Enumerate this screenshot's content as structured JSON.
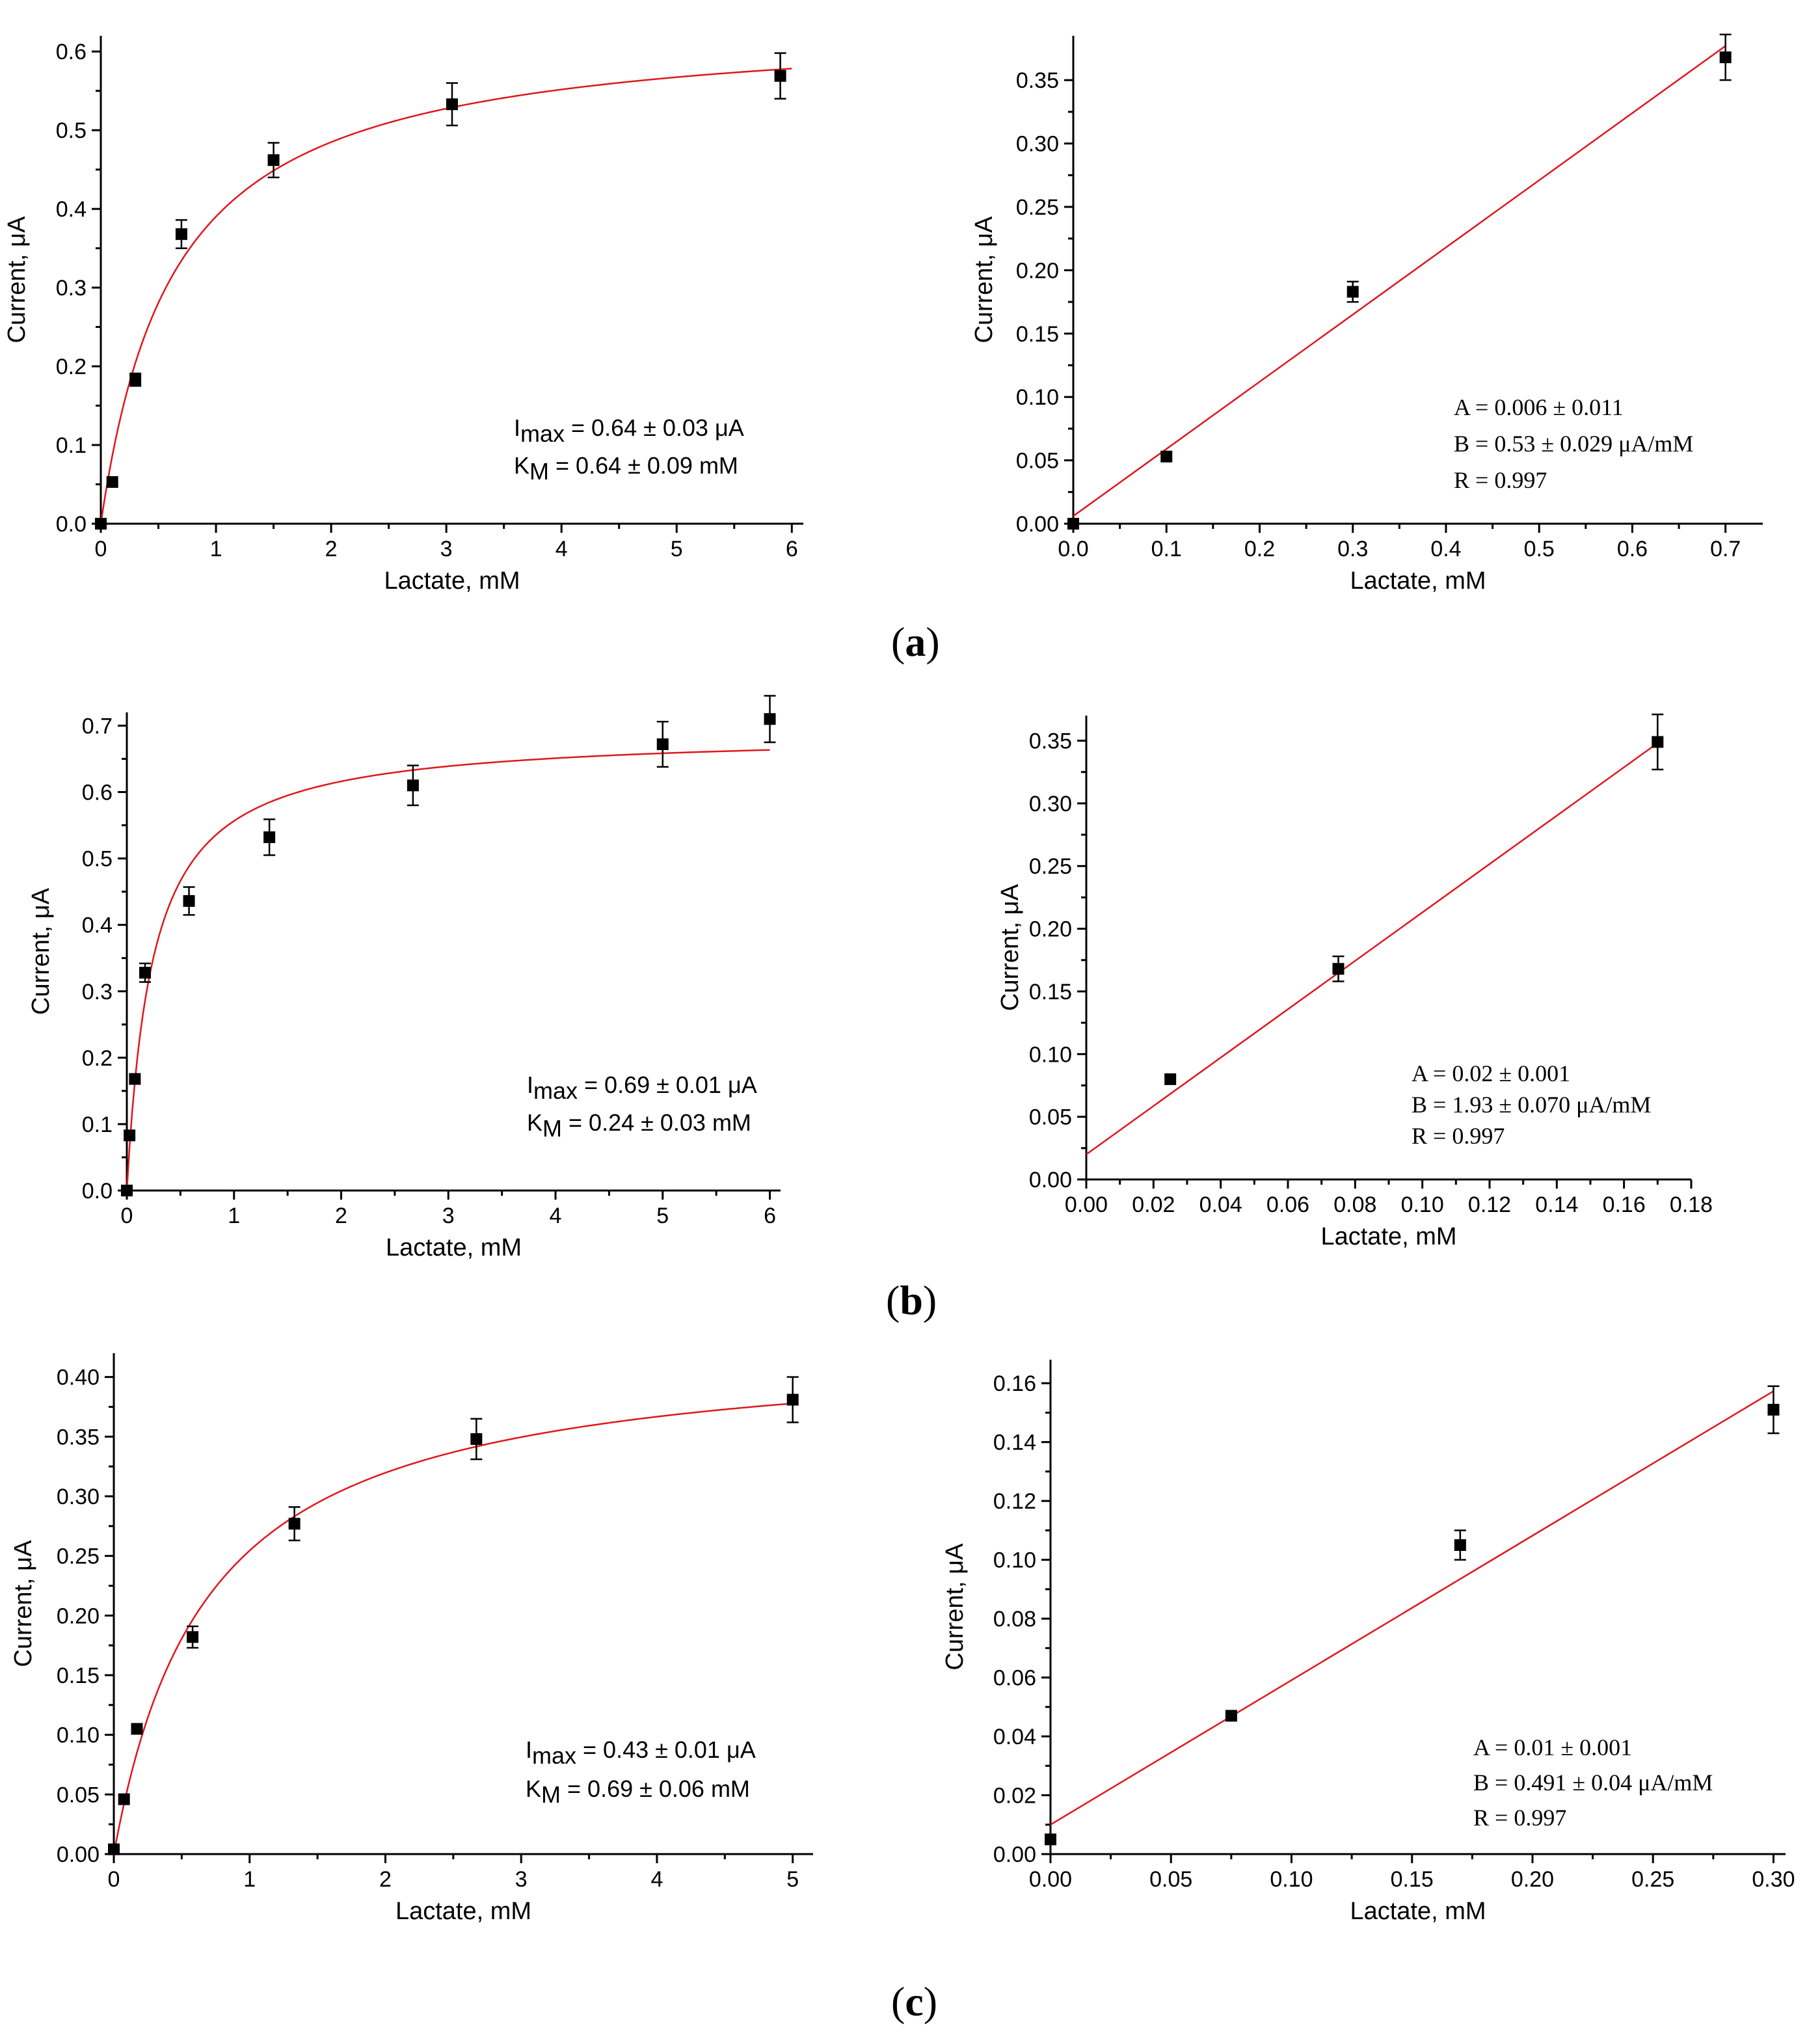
{
  "panel_labels": {
    "a": {
      "open": "(",
      "letter": "a",
      "close": ")"
    },
    "b": {
      "open": "(",
      "letter": "b",
      "close": ")"
    },
    "c": {
      "open": "(",
      "letter": "c",
      "close": ")"
    }
  },
  "chart_data": [
    {
      "id": "a-left",
      "type": "scatter",
      "fit": "michaelis-menten",
      "xlabel": "Lactate, mM",
      "ylabel": "Current, μA",
      "xlim": [
        0,
        6.1
      ],
      "ylim": [
        0,
        0.62
      ],
      "xticks": [
        0,
        1,
        2,
        3,
        4,
        5,
        6
      ],
      "xtick_labels": [
        "0",
        "1",
        "2",
        "3",
        "4",
        "5",
        "6"
      ],
      "yticks": [
        0,
        0.1,
        0.2,
        0.3,
        0.4,
        0.5,
        0.6
      ],
      "ytick_labels": [
        "0.0",
        "0.1",
        "0.2",
        "0.3",
        "0.4",
        "0.5",
        "0.6"
      ],
      "points": [
        {
          "x": 0.0,
          "y": 0.0,
          "err": 0.0
        },
        {
          "x": 0.1,
          "y": 0.053,
          "err": 0.0
        },
        {
          "x": 0.3,
          "y": 0.183,
          "err": 0.008
        },
        {
          "x": 0.7,
          "y": 0.368,
          "err": 0.018
        },
        {
          "x": 1.5,
          "y": 0.462,
          "err": 0.022
        },
        {
          "x": 3.05,
          "y": 0.533,
          "err": 0.027
        },
        {
          "x": 5.9,
          "y": 0.569,
          "err": 0.029
        }
      ],
      "fit_params": {
        "Imax": 0.64,
        "Km": 0.64,
        "x_end": 6.0
      },
      "annotation": [
        {
          "style": "sans",
          "parts": [
            {
              "t": "I",
              "k": "n"
            },
            {
              "t": "max",
              "k": "sub"
            },
            {
              "t": " = 0.64 ± 0.03 μA",
              "k": "n"
            }
          ]
        },
        {
          "style": "sans",
          "parts": [
            {
              "t": "K",
              "k": "n"
            },
            {
              "t": "M",
              "k": "sub"
            },
            {
              "t": " = 0.64 ± 0.09 mM",
              "k": "n"
            }
          ]
        }
      ]
    },
    {
      "id": "a-right",
      "type": "scatter",
      "fit": "linear",
      "xlabel": "Lactate, mM",
      "ylabel": "Current, μA",
      "xlim": [
        0,
        0.74
      ],
      "ylim": [
        0,
        0.385
      ],
      "xticks": [
        0,
        0.1,
        0.2,
        0.3,
        0.4,
        0.5,
        0.6,
        0.7
      ],
      "xtick_labels": [
        "0.0",
        "0.1",
        "0.2",
        "0.3",
        "0.4",
        "0.5",
        "0.6",
        "0.7"
      ],
      "yticks": [
        0,
        0.05,
        0.1,
        0.15,
        0.2,
        0.25,
        0.3,
        0.35
      ],
      "ytick_labels": [
        "0.00",
        "0.05",
        "0.10",
        "0.15",
        "0.20",
        "0.25",
        "0.30",
        "0.35"
      ],
      "points": [
        {
          "x": 0.0,
          "y": 0.0,
          "err": 0.0
        },
        {
          "x": 0.1,
          "y": 0.053,
          "err": 0.0
        },
        {
          "x": 0.3,
          "y": 0.183,
          "err": 0.008
        },
        {
          "x": 0.7,
          "y": 0.368,
          "err": 0.018
        }
      ],
      "fit_params": {
        "A": 0.006,
        "B": 0.53,
        "x_start": 0.0,
        "x_end": 0.7
      },
      "annotation": [
        {
          "style": "serif",
          "parts": [
            {
              "t": "A = 0.006 ± 0.011",
              "k": "n"
            }
          ]
        },
        {
          "style": "serif",
          "parts": [
            {
              "t": "B = 0.53 ± 0.029 μA/mM",
              "k": "n"
            }
          ]
        },
        {
          "style": "serif",
          "parts": [
            {
              "t": "R = 0.997",
              "k": "n"
            }
          ]
        }
      ]
    },
    {
      "id": "b-left",
      "type": "scatter",
      "fit": "michaelis-menten",
      "xlabel": "Lactate, mM",
      "ylabel": "Current, μA",
      "xlim": [
        0,
        6.1
      ],
      "ylim": [
        0,
        0.72
      ],
      "xticks": [
        0,
        1,
        2,
        3,
        4,
        5,
        6
      ],
      "xtick_labels": [
        "0",
        "1",
        "2",
        "3",
        "4",
        "5",
        "6"
      ],
      "yticks": [
        0,
        0.1,
        0.2,
        0.3,
        0.4,
        0.5,
        0.6,
        0.7
      ],
      "ytick_labels": [
        "0.0",
        "0.1",
        "0.2",
        "0.3",
        "0.4",
        "0.5",
        "0.6",
        "0.7"
      ],
      "points": [
        {
          "x": 0.0,
          "y": 0.0,
          "err": 0.0
        },
        {
          "x": 0.025,
          "y": 0.083,
          "err": 0.0
        },
        {
          "x": 0.075,
          "y": 0.168,
          "err": 0.0
        },
        {
          "x": 0.17,
          "y": 0.328,
          "err": 0.014
        },
        {
          "x": 0.58,
          "y": 0.436,
          "err": 0.021
        },
        {
          "x": 1.33,
          "y": 0.532,
          "err": 0.027
        },
        {
          "x": 2.67,
          "y": 0.61,
          "err": 0.03
        },
        {
          "x": 5.0,
          "y": 0.672,
          "err": 0.034
        },
        {
          "x": 6.0,
          "y": 0.71,
          "err": 0.035
        }
      ],
      "fit_params": {
        "Imax": 0.69,
        "Km": 0.24,
        "x_end": 6.0
      },
      "annotation": [
        {
          "style": "sans",
          "parts": [
            {
              "t": "I",
              "k": "n"
            },
            {
              "t": "max",
              "k": "sub"
            },
            {
              "t": " = 0.69 ± 0.01 μA",
              "k": "n"
            }
          ]
        },
        {
          "style": "sans",
          "parts": [
            {
              "t": "K",
              "k": "n"
            },
            {
              "t": "M",
              "k": "sub"
            },
            {
              "t": " = 0.24 ± 0.03 mM",
              "k": "n"
            }
          ]
        }
      ]
    },
    {
      "id": "b-right",
      "type": "scatter",
      "fit": "linear",
      "xlabel": "Lactate, mM",
      "ylabel": "Current, μA",
      "xlim": [
        0,
        0.18
      ],
      "ylim": [
        0,
        0.37
      ],
      "xticks": [
        0,
        0.02,
        0.04,
        0.06,
        0.08,
        0.1,
        0.12,
        0.14,
        0.16,
        0.18
      ],
      "xtick_labels": [
        "0.00",
        "0.02",
        "0.04",
        "0.06",
        "0.08",
        "0.10",
        "0.12",
        "0.14",
        "0.16",
        "0.18"
      ],
      "yticks": [
        0,
        0.05,
        0.1,
        0.15,
        0.2,
        0.25,
        0.3,
        0.35
      ],
      "ytick_labels": [
        "0.00",
        "0.05",
        "0.10",
        "0.15",
        "0.20",
        "0.25",
        "0.30",
        "0.35"
      ],
      "points": [
        {
          "x": 0.025,
          "y": 0.08,
          "err": 0.0
        },
        {
          "x": 0.075,
          "y": 0.168,
          "err": 0.01
        },
        {
          "x": 0.17,
          "y": 0.349,
          "err": 0.022
        }
      ],
      "fit_params": {
        "A": 0.02,
        "B": 1.93,
        "x_start": 0.0,
        "x_end": 0.17
      },
      "annotation": [
        {
          "style": "serif",
          "parts": [
            {
              "t": "A = 0.02 ± 0.001",
              "k": "n"
            }
          ]
        },
        {
          "style": "serif",
          "parts": [
            {
              "t": "B = 1.93 ± 0.070 μA/mM",
              "k": "n"
            }
          ]
        },
        {
          "style": "serif",
          "parts": [
            {
              "t": "R = 0.997",
              "k": "n"
            }
          ]
        }
      ]
    },
    {
      "id": "c-left",
      "type": "scatter",
      "fit": "michaelis-menten",
      "xlabel": "Lactate, mM",
      "ylabel": "Current, μA",
      "xlim": [
        0,
        5.15
      ],
      "ylim": [
        0,
        0.42
      ],
      "xticks": [
        0,
        1,
        2,
        3,
        4,
        5
      ],
      "xtick_labels": [
        "0",
        "1",
        "2",
        "3",
        "4",
        "5"
      ],
      "yticks": [
        0,
        0.05,
        0.1,
        0.15,
        0.2,
        0.25,
        0.3,
        0.35,
        0.4
      ],
      "ytick_labels": [
        "0.00",
        "0.05",
        "0.10",
        "0.15",
        "0.20",
        "0.25",
        "0.30",
        "0.35",
        "0.40"
      ],
      "points": [
        {
          "x": 0.0,
          "y": 0.004,
          "err": 0.0
        },
        {
          "x": 0.075,
          "y": 0.046,
          "err": 0.0
        },
        {
          "x": 0.17,
          "y": 0.105,
          "err": 0.0
        },
        {
          "x": 0.58,
          "y": 0.182,
          "err": 0.009
        },
        {
          "x": 1.33,
          "y": 0.277,
          "err": 0.014
        },
        {
          "x": 2.67,
          "y": 0.348,
          "err": 0.017
        },
        {
          "x": 5.0,
          "y": 0.381,
          "err": 0.019
        }
      ],
      "fit_params": {
        "Imax": 0.43,
        "Km": 0.69,
        "x_end": 5.0
      },
      "annotation": [
        {
          "style": "sans",
          "parts": [
            {
              "t": "I",
              "k": "n"
            },
            {
              "t": "max",
              "k": "sub"
            },
            {
              "t": " = 0.43 ± 0.01 μA",
              "k": "n"
            }
          ]
        },
        {
          "style": "sans",
          "parts": [
            {
              "t": "K",
              "k": "n"
            },
            {
              "t": "M",
              "k": "sub"
            },
            {
              "t": " = 0.69 ± 0.06 mM",
              "k": "n"
            }
          ]
        }
      ]
    },
    {
      "id": "c-right",
      "type": "scatter",
      "fit": "linear",
      "xlabel": "Lactate, mM",
      "ylabel": "Current, μA",
      "xlim": [
        0,
        0.305
      ],
      "ylim": [
        0,
        0.168
      ],
      "xticks": [
        0,
        0.05,
        0.1,
        0.15,
        0.2,
        0.25,
        0.3
      ],
      "xtick_labels": [
        "0.00",
        "0.05",
        "0.10",
        "0.15",
        "0.20",
        "0.25",
        "0.30"
      ],
      "yticks": [
        0,
        0.02,
        0.04,
        0.06,
        0.08,
        0.1,
        0.12,
        0.14,
        0.16
      ],
      "ytick_labels": [
        "0.00",
        "0.02",
        "0.04",
        "0.06",
        "0.08",
        "0.10",
        "0.12",
        "0.14",
        "0.16"
      ],
      "points": [
        {
          "x": 0.0,
          "y": 0.005,
          "err": 0.0
        },
        {
          "x": 0.075,
          "y": 0.047,
          "err": 0.0
        },
        {
          "x": 0.17,
          "y": 0.105,
          "err": 0.005
        },
        {
          "x": 0.3,
          "y": 0.151,
          "err": 0.008
        }
      ],
      "fit_params": {
        "A": 0.01,
        "B": 0.491,
        "x_start": 0.0,
        "x_end": 0.3
      },
      "annotation": [
        {
          "style": "serif",
          "parts": [
            {
              "t": "A = 0.01 ± 0.001",
              "k": "n"
            }
          ]
        },
        {
          "style": "serif",
          "parts": [
            {
              "t": "B = 0.491 ± 0.04 μA/mM",
              "k": "n"
            }
          ]
        },
        {
          "style": "serif",
          "parts": [
            {
              "t": "R = 0.997",
              "k": "n"
            }
          ]
        }
      ]
    }
  ]
}
